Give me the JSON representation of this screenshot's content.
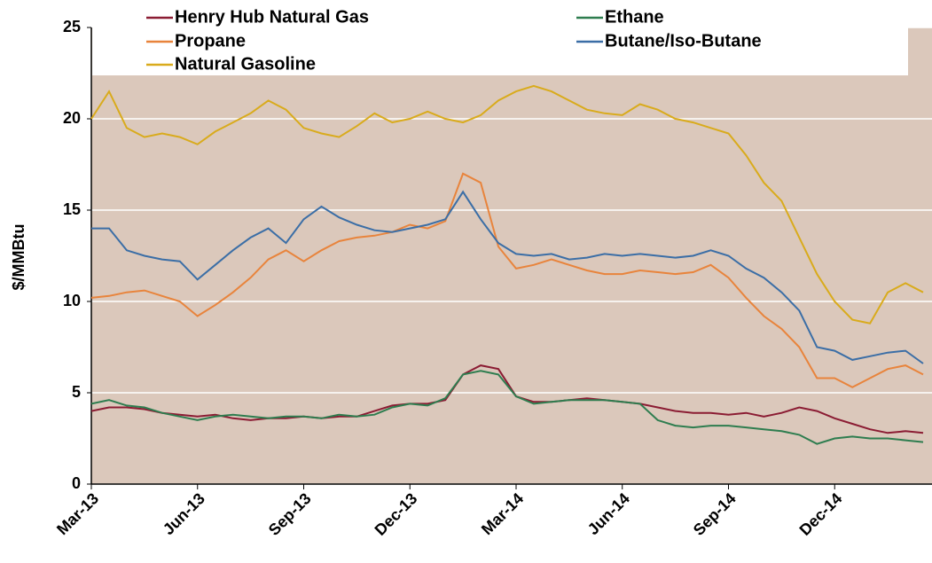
{
  "chart_data": {
    "type": "line",
    "y_label": "$/MMBtu",
    "x": [
      0,
      0.5,
      1,
      1.5,
      2,
      2.5,
      3,
      3.5,
      4,
      4.5,
      5,
      5.5,
      6,
      6.5,
      7,
      7.5,
      8,
      8.5,
      9,
      9.5,
      10,
      10.5,
      11,
      11.5,
      12,
      12.5,
      13,
      13.5,
      14,
      14.5,
      15,
      15.5,
      16,
      16.5,
      17,
      17.5,
      18,
      18.5,
      19,
      19.5,
      20,
      20.5,
      21,
      21.5,
      22,
      22.5,
      23,
      23.5
    ],
    "xlim": [
      0,
      23.75
    ],
    "xticks": [
      {
        "value": 0,
        "label": "Mar-13"
      },
      {
        "value": 3,
        "label": "Jun-13"
      },
      {
        "value": 6,
        "label": "Sep-13"
      },
      {
        "value": 9,
        "label": "Dec-13"
      },
      {
        "value": 12,
        "label": "Mar-14"
      },
      {
        "value": 15,
        "label": "Jun-14"
      },
      {
        "value": 18,
        "label": "Sep-14"
      },
      {
        "value": 21,
        "label": "Dec-14"
      }
    ],
    "ylim": [
      0,
      25
    ],
    "yticks": [
      0,
      5,
      10,
      15,
      20,
      25
    ],
    "grid": true,
    "background": "#dbc8bb",
    "series": [
      {
        "name": "Henry Hub Natural Gas",
        "color": "#8b1c33",
        "values": [
          4.0,
          4.2,
          4.2,
          4.1,
          3.9,
          3.8,
          3.7,
          3.8,
          3.6,
          3.5,
          3.6,
          3.6,
          3.7,
          3.6,
          3.7,
          3.7,
          4.0,
          4.3,
          4.4,
          4.4,
          4.6,
          6.0,
          6.5,
          6.3,
          4.8,
          4.5,
          4.5,
          4.6,
          4.7,
          4.6,
          4.5,
          4.4,
          4.2,
          4.0,
          3.9,
          3.9,
          3.8,
          3.9,
          3.7,
          3.9,
          4.2,
          4.0,
          3.6,
          3.3,
          3.0,
          2.8,
          2.9,
          2.8
        ]
      },
      {
        "name": "Ethane",
        "color": "#2e7d4f",
        "values": [
          4.4,
          4.6,
          4.3,
          4.2,
          3.9,
          3.7,
          3.5,
          3.7,
          3.8,
          3.7,
          3.6,
          3.7,
          3.7,
          3.6,
          3.8,
          3.7,
          3.8,
          4.2,
          4.4,
          4.3,
          4.7,
          6.0,
          6.2,
          6.0,
          4.8,
          4.4,
          4.5,
          4.6,
          4.6,
          4.6,
          4.5,
          4.4,
          3.5,
          3.2,
          3.1,
          3.2,
          3.2,
          3.1,
          3.0,
          2.9,
          2.7,
          2.2,
          2.5,
          2.6,
          2.5,
          2.5,
          2.4,
          2.3
        ]
      },
      {
        "name": "Propane",
        "color": "#e8843c",
        "values": [
          10.2,
          10.3,
          10.5,
          10.6,
          10.3,
          10.0,
          9.2,
          9.8,
          10.5,
          11.3,
          12.3,
          12.8,
          12.2,
          12.8,
          13.3,
          13.5,
          13.6,
          13.8,
          14.2,
          14.0,
          14.4,
          17.0,
          16.5,
          13.0,
          11.8,
          12.0,
          12.3,
          12.0,
          11.7,
          11.5,
          11.5,
          11.7,
          11.6,
          11.5,
          11.6,
          12.0,
          11.3,
          10.2,
          9.2,
          8.5,
          7.5,
          5.8,
          5.8,
          5.3,
          5.8,
          6.3,
          6.5,
          6.0
        ]
      },
      {
        "name": "Butane/Iso-Butane",
        "color": "#3b6ea6",
        "values": [
          14.0,
          14.0,
          12.8,
          12.5,
          12.3,
          12.2,
          11.2,
          12.0,
          12.8,
          13.5,
          14.0,
          13.2,
          14.5,
          15.2,
          14.6,
          14.2,
          13.9,
          13.8,
          14.0,
          14.2,
          14.5,
          16.0,
          14.5,
          13.2,
          12.6,
          12.5,
          12.6,
          12.3,
          12.4,
          12.6,
          12.5,
          12.6,
          12.5,
          12.4,
          12.5,
          12.8,
          12.5,
          11.8,
          11.3,
          10.5,
          9.5,
          7.5,
          7.3,
          6.8,
          7.0,
          7.2,
          7.3,
          6.6
        ]
      },
      {
        "name": "Natural Gasoline",
        "color": "#d9ab1c",
        "values": [
          20.0,
          21.5,
          19.5,
          19.0,
          19.2,
          19.0,
          18.6,
          19.3,
          19.8,
          20.3,
          21.0,
          20.5,
          19.5,
          19.2,
          19.0,
          19.6,
          20.3,
          19.8,
          20.0,
          20.4,
          20.0,
          19.8,
          20.2,
          21.0,
          21.5,
          21.8,
          21.5,
          21.0,
          20.5,
          20.3,
          20.2,
          20.8,
          20.5,
          20.0,
          19.8,
          19.5,
          19.2,
          18.0,
          16.5,
          15.5,
          13.5,
          11.5,
          10.0,
          9.0,
          8.8,
          10.5,
          11.0,
          10.5
        ]
      }
    ]
  }
}
